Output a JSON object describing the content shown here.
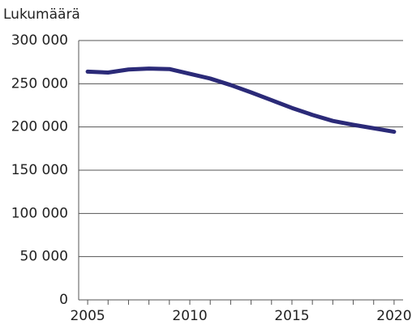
{
  "chart_data": {
    "type": "line",
    "ylabel": "Lukumäärä",
    "x": [
      2005,
      2006,
      2007,
      2008,
      2009,
      2010,
      2011,
      2012,
      2013,
      2014,
      2015,
      2016,
      2017,
      2018,
      2019,
      2020
    ],
    "series": [
      {
        "name": "Lukumäärä",
        "color": "#2b2a78",
        "values": [
          264000,
          263000,
          266500,
          267500,
          267000,
          261500,
          256000,
          248500,
          240000,
          231000,
          222000,
          214000,
          207000,
          202500,
          198500,
          194500
        ]
      }
    ],
    "xlim": [
      2004.56,
      2020.44
    ],
    "xticks": [
      2005,
      2010,
      2015,
      2020
    ],
    "ylim": [
      0,
      300000
    ],
    "yticks": [
      0,
      {
        "value": 50000,
        "label": "50 000"
      },
      {
        "value": 100000,
        "label": "100 000"
      },
      {
        "value": 150000,
        "label": "150 000"
      },
      {
        "value": 200000,
        "label": "200 000"
      },
      {
        "value": 250000,
        "label": "250 000"
      },
      {
        "value": 300000,
        "label": "300 000"
      }
    ],
    "grid": true
  }
}
